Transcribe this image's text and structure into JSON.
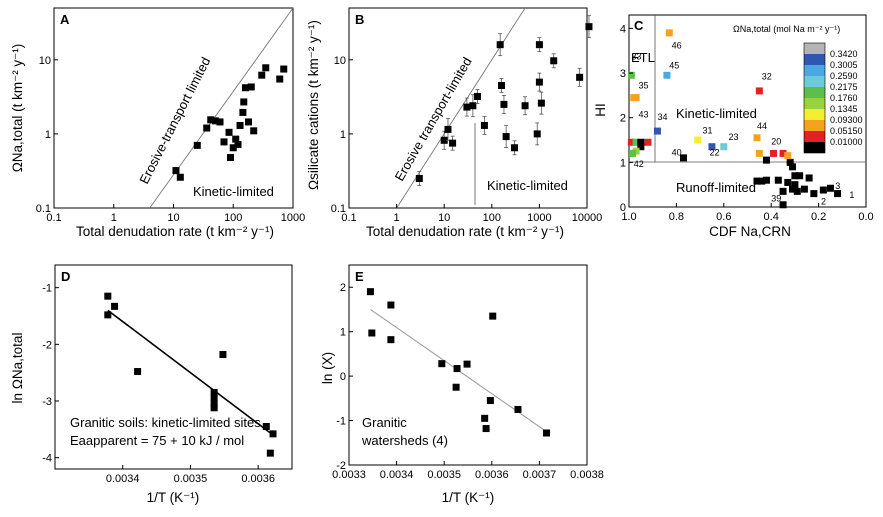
{
  "chart_data": [
    {
      "panel": "A",
      "type": "scatter",
      "xlabel": "Total denudation rate (t km⁻² y⁻¹)",
      "ylabel": "ΩNa,total (t km⁻² y⁻¹)",
      "xscale": "log",
      "yscale": "log",
      "xlim": [
        0.1,
        1000
      ],
      "ylim": [
        0.1,
        50
      ],
      "xticks": [
        "0.1",
        "1",
        "10",
        "100",
        "1000"
      ],
      "yticks": [
        "0.1",
        "1",
        "10"
      ],
      "annotations": [
        "Erosive-transport limited",
        "Kinetic-limited"
      ],
      "line": "1:1",
      "points": [
        [
          11,
          0.32
        ],
        [
          13,
          0.26
        ],
        [
          25,
          0.7
        ],
        [
          36,
          1.2
        ],
        [
          42,
          1.55
        ],
        [
          50,
          1.5
        ],
        [
          60,
          1.45
        ],
        [
          70,
          0.78
        ],
        [
          85,
          1.05
        ],
        [
          90,
          0.48
        ],
        [
          100,
          0.65
        ],
        [
          110,
          0.85
        ],
        [
          120,
          0.72
        ],
        [
          130,
          1.3
        ],
        [
          145,
          1.95
        ],
        [
          150,
          2.7
        ],
        [
          160,
          4.2
        ],
        [
          180,
          1.45
        ],
        [
          200,
          4.3
        ],
        [
          220,
          1.1
        ],
        [
          300,
          6.2
        ],
        [
          350,
          7.8
        ],
        [
          600,
          5.5
        ],
        [
          700,
          7.5
        ]
      ]
    },
    {
      "panel": "B",
      "type": "scatter",
      "xlabel": "Total denudation rate (t km⁻² y⁻¹)",
      "ylabel": "Ωsilicate cations (t km⁻² y⁻¹)",
      "xscale": "log",
      "yscale": "log",
      "xlim": [
        0.1,
        10000
      ],
      "ylim": [
        0.1,
        50
      ],
      "xticks": [
        "0.1",
        "1",
        "10",
        "100",
        "1000",
        "10000"
      ],
      "yticks": [
        "0.1",
        "1",
        "10"
      ],
      "annotations": [
        "Erosive transport-limited",
        "Kinetic-limited"
      ],
      "line": "1:1",
      "points": [
        [
          3,
          0.25
        ],
        [
          10,
          0.82
        ],
        [
          12,
          1.15
        ],
        [
          15,
          0.75
        ],
        [
          30,
          2.3
        ],
        [
          40,
          2.4
        ],
        [
          50,
          3.2
        ],
        [
          70,
          1.3
        ],
        [
          150,
          16
        ],
        [
          160,
          4.5
        ],
        [
          180,
          2.5
        ],
        [
          200,
          0.92
        ],
        [
          300,
          0.65
        ],
        [
          500,
          2.4
        ],
        [
          900,
          1.0
        ],
        [
          1000,
          16
        ],
        [
          1000,
          5.0
        ],
        [
          1100,
          2.6
        ],
        [
          2000,
          9.7
        ],
        [
          7000,
          5.8
        ],
        [
          11000,
          28
        ]
      ]
    },
    {
      "panel": "C",
      "type": "scatter",
      "xlabel": "CDF Na,CRN",
      "ylabel": "HI",
      "xlim": [
        1.0,
        0.0
      ],
      "ylim": [
        0,
        4.3
      ],
      "xticks": [
        "1.0",
        "0.8",
        "0.6",
        "0.4",
        "0.2",
        "0.0"
      ],
      "yticks": [
        "0",
        "1",
        "2",
        "3",
        "4"
      ],
      "colorbar_title": "ΩNa,total (mol Na m⁻² y⁻¹)",
      "colorbar": [
        {
          "label": "0.3420",
          "color": "#b4b4b4"
        },
        {
          "label": "0.3005",
          "color": "#2f56b0"
        },
        {
          "label": "0.2590",
          "color": "#4aa8e0"
        },
        {
          "label": "0.2175",
          "color": "#6dcbd8"
        },
        {
          "label": "0.1760",
          "color": "#5cbf4a"
        },
        {
          "label": "0.1345",
          "color": "#9ad23b"
        },
        {
          "label": "0.09300",
          "color": "#f5ee30"
        },
        {
          "label": "0.05150",
          "color": "#f5a31e"
        },
        {
          "label": "0.01000",
          "color": "#e52020"
        },
        {
          "label": "",
          "color": "#000000"
        }
      ],
      "region_labels": [
        "ETL",
        "Kinetic-limited",
        "Runoff-limited"
      ],
      "point_labels": [
        "33",
        "35",
        "43",
        "46",
        "45",
        "34",
        "31",
        "23",
        "22",
        "40",
        "42",
        "44",
        "20",
        "32",
        "39",
        "3",
        "2",
        "1"
      ],
      "colored_points": [
        {
          "x": 0.99,
          "y": 2.95,
          "c": "#5cbf4a",
          "label": "33"
        },
        {
          "x": 0.98,
          "y": 2.45,
          "c": "#f5a31e",
          "label": "35"
        },
        {
          "x": 0.97,
          "y": 2.45,
          "c": "#f5a31e",
          "label": ""
        },
        {
          "x": 0.83,
          "y": 3.9,
          "c": "#f5a31e",
          "label": "46"
        },
        {
          "x": 0.84,
          "y": 2.95,
          "c": "#4aa8e0",
          "label": "45"
        },
        {
          "x": 0.88,
          "y": 1.7,
          "c": "#2f56b0",
          "label": "34"
        },
        {
          "x": 0.71,
          "y": 1.5,
          "c": "#f5ee30",
          "label": "31"
        },
        {
          "x": 0.65,
          "y": 1.35,
          "c": "#2f56b0",
          "label": "22"
        },
        {
          "x": 0.6,
          "y": 1.35,
          "c": "#6dcbd8",
          "label": "23"
        },
        {
          "x": 0.46,
          "y": 1.55,
          "c": "#f5a31e",
          "label": "44"
        },
        {
          "x": 0.45,
          "y": 1.2,
          "c": "#f5a31e",
          "label": ""
        },
        {
          "x": 0.39,
          "y": 1.2,
          "c": "#e52020",
          "label": ""
        },
        {
          "x": 0.45,
          "y": 2.6,
          "c": "#e52020",
          "label": "32"
        },
        {
          "x": 0.35,
          "y": 1.2,
          "c": "#e52020",
          "label": "20"
        },
        {
          "x": 0.33,
          "y": 1.15,
          "c": "#f5a31e",
          "label": ""
        },
        {
          "x": 0.99,
          "y": 1.45,
          "c": "#e52020",
          "label": ""
        },
        {
          "x": 0.97,
          "y": 1.45,
          "c": "#5cbf4a",
          "label": ""
        },
        {
          "x": 0.97,
          "y": 1.25,
          "c": "#9ad23b",
          "label": ""
        },
        {
          "x": 0.985,
          "y": 1.2,
          "c": "#5cbf4a",
          "label": "42"
        },
        {
          "x": 0.92,
          "y": 1.45,
          "c": "#e52020",
          "label": ""
        },
        {
          "x": 0.95,
          "y": 1.45,
          "c": "#000000",
          "label": ""
        }
      ],
      "black_points": [
        [
          0.95,
          1.35
        ],
        [
          0.77,
          1.1
        ],
        [
          0.42,
          1.05
        ],
        [
          0.32,
          1.0
        ],
        [
          0.31,
          0.9
        ],
        [
          0.46,
          0.58
        ],
        [
          0.44,
          0.58
        ],
        [
          0.42,
          0.6
        ],
        [
          0.37,
          0.6
        ],
        [
          0.33,
          0.55
        ],
        [
          0.3,
          0.7
        ],
        [
          0.28,
          0.7
        ],
        [
          0.26,
          0.4
        ],
        [
          0.24,
          0.65
        ],
        [
          0.3,
          0.5
        ],
        [
          0.29,
          0.35
        ],
        [
          0.31,
          0.4
        ],
        [
          0.35,
          0.35
        ],
        [
          0.22,
          0.3
        ],
        [
          0.18,
          0.38
        ],
        [
          0.15,
          0.42
        ],
        [
          0.12,
          0.3
        ],
        [
          0.35,
          0.05
        ]
      ]
    },
    {
      "panel": "D",
      "type": "scatter",
      "xlabel": "1/T (K⁻¹)",
      "ylabel": "ln ΩNa,total",
      "xlim": [
        0.0033,
        0.00365
      ],
      "ylim": [
        -4.2,
        -0.6
      ],
      "xticks": [
        "0.0034",
        "0.0035",
        "0.0036"
      ],
      "yticks": [
        "-1",
        "-2",
        "-3",
        "-4"
      ],
      "annotation_lines": [
        "Granitic soils: kinetic-limited sites",
        "Eaapparent = 75 + 10 kJ / mol"
      ],
      "fit": [
        [
          0.003378,
          -1.4
        ],
        [
          0.003622,
          -3.6
        ]
      ],
      "points": [
        [
          0.003378,
          -1.15
        ],
        [
          0.003378,
          -1.48
        ],
        [
          0.003388,
          -1.33
        ],
        [
          0.003422,
          -2.48
        ],
        [
          0.003535,
          -2.85
        ],
        [
          0.003535,
          -2.95
        ],
        [
          0.003535,
          -3.05
        ],
        [
          0.003535,
          -3.12
        ],
        [
          0.003548,
          -2.18
        ],
        [
          0.003612,
          -3.45
        ],
        [
          0.003618,
          -3.92
        ],
        [
          0.003622,
          -3.58
        ]
      ]
    },
    {
      "panel": "E",
      "type": "scatter",
      "xlabel": "1/T (K⁻¹)",
      "ylabel": "ln (X)",
      "xlim": [
        0.0033,
        0.0038
      ],
      "ylim": [
        -2,
        2.5
      ],
      "xticks": [
        "0.0033",
        "0.0034",
        "0.0035",
        "0.0036",
        "0.0037",
        "0.0038"
      ],
      "yticks": [
        "-2",
        "-1",
        "0",
        "1",
        "2"
      ],
      "annotation_lines": [
        "Granitic",
        "watersheds (4)"
      ],
      "fit": [
        [
          0.003345,
          1.5
        ],
        [
          0.003715,
          -1.25
        ]
      ],
      "points": [
        [
          0.003345,
          1.9
        ],
        [
          0.003348,
          0.97
        ],
        [
          0.003388,
          1.6
        ],
        [
          0.003388,
          0.82
        ],
        [
          0.003495,
          0.28
        ],
        [
          0.003525,
          -0.25
        ],
        [
          0.003527,
          0.17
        ],
        [
          0.003548,
          0.27
        ],
        [
          0.003585,
          -0.95
        ],
        [
          0.003588,
          -1.18
        ],
        [
          0.003597,
          -0.55
        ],
        [
          0.003602,
          1.35
        ],
        [
          0.003655,
          -0.75
        ],
        [
          0.003715,
          -1.28
        ]
      ]
    }
  ]
}
